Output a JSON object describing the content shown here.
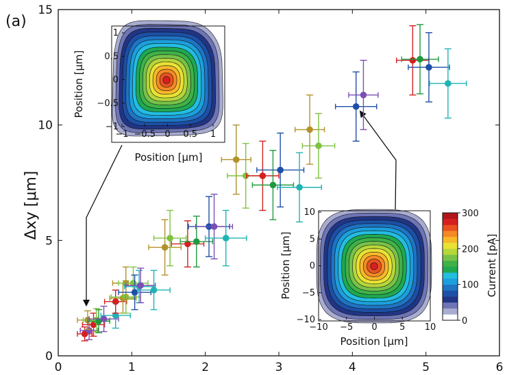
{
  "panel_label": "(a)",
  "chart_data": {
    "type": "scatter",
    "title": "",
    "xlabel": "",
    "ylabel": "Δxy [μm]",
    "xlim": [
      0,
      6
    ],
    "ylim": [
      0,
      15
    ],
    "xticks": [
      "0",
      "1",
      "2",
      "3",
      "4",
      "5",
      "6"
    ],
    "yticks": [
      "0",
      "5",
      "10",
      "15"
    ],
    "points": [
      {
        "x": 0.36,
        "y": 0.95,
        "xerr": 0.1,
        "yerr": 0.3,
        "color": "#d42020"
      },
      {
        "x": 0.42,
        "y": 1.1,
        "xerr": 0.12,
        "yerr": 0.4,
        "color": "#7b4fb5"
      },
      {
        "x": 0.4,
        "y": 1.55,
        "xerr": 0.14,
        "yerr": 0.4,
        "color": "#b3912a"
      },
      {
        "x": 0.48,
        "y": 1.35,
        "xerr": 0.15,
        "yerr": 0.5,
        "color": "#d42020"
      },
      {
        "x": 0.52,
        "y": 1.55,
        "xerr": 0.18,
        "yerr": 0.5,
        "color": "#7fc241"
      },
      {
        "x": 0.55,
        "y": 1.5,
        "xerr": 0.15,
        "yerr": 0.5,
        "color": "#1f9a3e"
      },
      {
        "x": 0.62,
        "y": 1.6,
        "xerr": 0.2,
        "yerr": 0.55,
        "color": "#7b4fb5"
      },
      {
        "x": 0.78,
        "y": 1.75,
        "xerr": 0.2,
        "yerr": 0.55,
        "color": "#1fb3b3"
      },
      {
        "x": 0.78,
        "y": 2.35,
        "xerr": 0.15,
        "yerr": 0.5,
        "color": "#d42020"
      },
      {
        "x": 0.88,
        "y": 2.5,
        "xerr": 0.18,
        "yerr": 0.65,
        "color": "#b3912a"
      },
      {
        "x": 0.92,
        "y": 2.55,
        "xerr": 0.2,
        "yerr": 0.7,
        "color": "#7fc241"
      },
      {
        "x": 0.92,
        "y": 3.15,
        "xerr": 0.18,
        "yerr": 0.7,
        "color": "#b3912a"
      },
      {
        "x": 1.02,
        "y": 3.15,
        "xerr": 0.2,
        "yerr": 0.7,
        "color": "#7fc241"
      },
      {
        "x": 1.04,
        "y": 2.75,
        "xerr": 0.22,
        "yerr": 0.75,
        "color": "#1e4fa8"
      },
      {
        "x": 1.1,
        "y": 3.0,
        "xerr": 0.2,
        "yerr": 0.7,
        "color": "#1fb3b3"
      },
      {
        "x": 1.12,
        "y": 3.05,
        "xerr": 0.2,
        "yerr": 0.75,
        "color": "#7b4fb5"
      },
      {
        "x": 1.3,
        "y": 2.85,
        "xerr": 0.22,
        "yerr": 0.85,
        "color": "#1fb3b3"
      },
      {
        "x": 1.45,
        "y": 4.7,
        "xerr": 0.22,
        "yerr": 1.2,
        "color": "#b3912a"
      },
      {
        "x": 1.52,
        "y": 5.1,
        "xerr": 0.22,
        "yerr": 1.2,
        "color": "#7fc241"
      },
      {
        "x": 1.76,
        "y": 4.85,
        "xerr": 0.22,
        "yerr": 1.0,
        "color": "#d42020"
      },
      {
        "x": 1.88,
        "y": 4.95,
        "xerr": 0.22,
        "yerr": 1.1,
        "color": "#1f9a3e"
      },
      {
        "x": 2.05,
        "y": 5.6,
        "xerr": 0.28,
        "yerr": 1.3,
        "color": "#1e4fa8"
      },
      {
        "x": 2.12,
        "y": 5.6,
        "xerr": 0.25,
        "yerr": 1.4,
        "color": "#7b4fb5"
      },
      {
        "x": 2.28,
        "y": 5.1,
        "xerr": 0.28,
        "yerr": 1.2,
        "color": "#1fb3b3"
      },
      {
        "x": 2.42,
        "y": 8.5,
        "xerr": 0.2,
        "yerr": 1.5,
        "color": "#b3912a"
      },
      {
        "x": 2.55,
        "y": 7.8,
        "xerr": 0.25,
        "yerr": 1.4,
        "color": "#7fc241"
      },
      {
        "x": 2.78,
        "y": 7.8,
        "xerr": 0.22,
        "yerr": 1.5,
        "color": "#d42020"
      },
      {
        "x": 2.92,
        "y": 7.4,
        "xerr": 0.28,
        "yerr": 1.5,
        "color": "#1f9a3e"
      },
      {
        "x": 3.02,
        "y": 8.05,
        "xerr": 0.32,
        "yerr": 1.6,
        "color": "#1e4fa8"
      },
      {
        "x": 3.28,
        "y": 7.3,
        "xerr": 0.3,
        "yerr": 1.5,
        "color": "#1fb3b3"
      },
      {
        "x": 3.42,
        "y": 9.8,
        "xerr": 0.2,
        "yerr": 1.5,
        "color": "#b3912a"
      },
      {
        "x": 3.54,
        "y": 9.1,
        "xerr": 0.22,
        "yerr": 1.4,
        "color": "#7fc241"
      },
      {
        "x": 4.05,
        "y": 10.8,
        "xerr": 0.28,
        "yerr": 1.5,
        "color": "#1e4fa8"
      },
      {
        "x": 4.15,
        "y": 11.3,
        "xerr": 0.2,
        "yerr": 1.5,
        "color": "#7b4fb5"
      },
      {
        "x": 4.82,
        "y": 12.8,
        "xerr": 0.22,
        "yerr": 1.5,
        "color": "#d42020"
      },
      {
        "x": 4.92,
        "y": 12.85,
        "xerr": 0.25,
        "yerr": 1.5,
        "color": "#1f9a3e"
      },
      {
        "x": 5.04,
        "y": 12.5,
        "xerr": 0.28,
        "yerr": 1.5,
        "color": "#1e4fa8"
      },
      {
        "x": 5.3,
        "y": 11.8,
        "xerr": 0.25,
        "yerr": 1.5,
        "color": "#1fb3b3"
      }
    ],
    "inset_top": {
      "xlabel": "Position [μm]",
      "ylabel": "Position [μm]",
      "xticks": [
        "−1",
        "−0.5",
        "0",
        "0.5",
        "1"
      ],
      "yticks": [
        "1",
        "0.5",
        "0",
        "−0.5",
        "−1"
      ]
    },
    "inset_bottom": {
      "xlabel": "Position [μm]",
      "ylabel": "Position [μm]",
      "xticks": [
        "−10",
        "−5",
        "0",
        "5",
        "10"
      ],
      "yticks": [
        "10",
        "5",
        "0",
        "−5",
        "−10"
      ]
    },
    "colorbar": {
      "label": "Current [pA]",
      "ticks": [
        "300",
        "200",
        "100",
        "0"
      ],
      "colors": [
        "#ffffff",
        "#a8acd0",
        "#6e75b5",
        "#213585",
        "#1c4fa6",
        "#1f74c3",
        "#1c9fdc",
        "#23bde0",
        "#1fa84f",
        "#3fb248",
        "#78c24a",
        "#b7d63a",
        "#e8e234",
        "#f7b82a",
        "#f38a25",
        "#e8521f",
        "#d42020",
        "#b0161b"
      ]
    }
  }
}
